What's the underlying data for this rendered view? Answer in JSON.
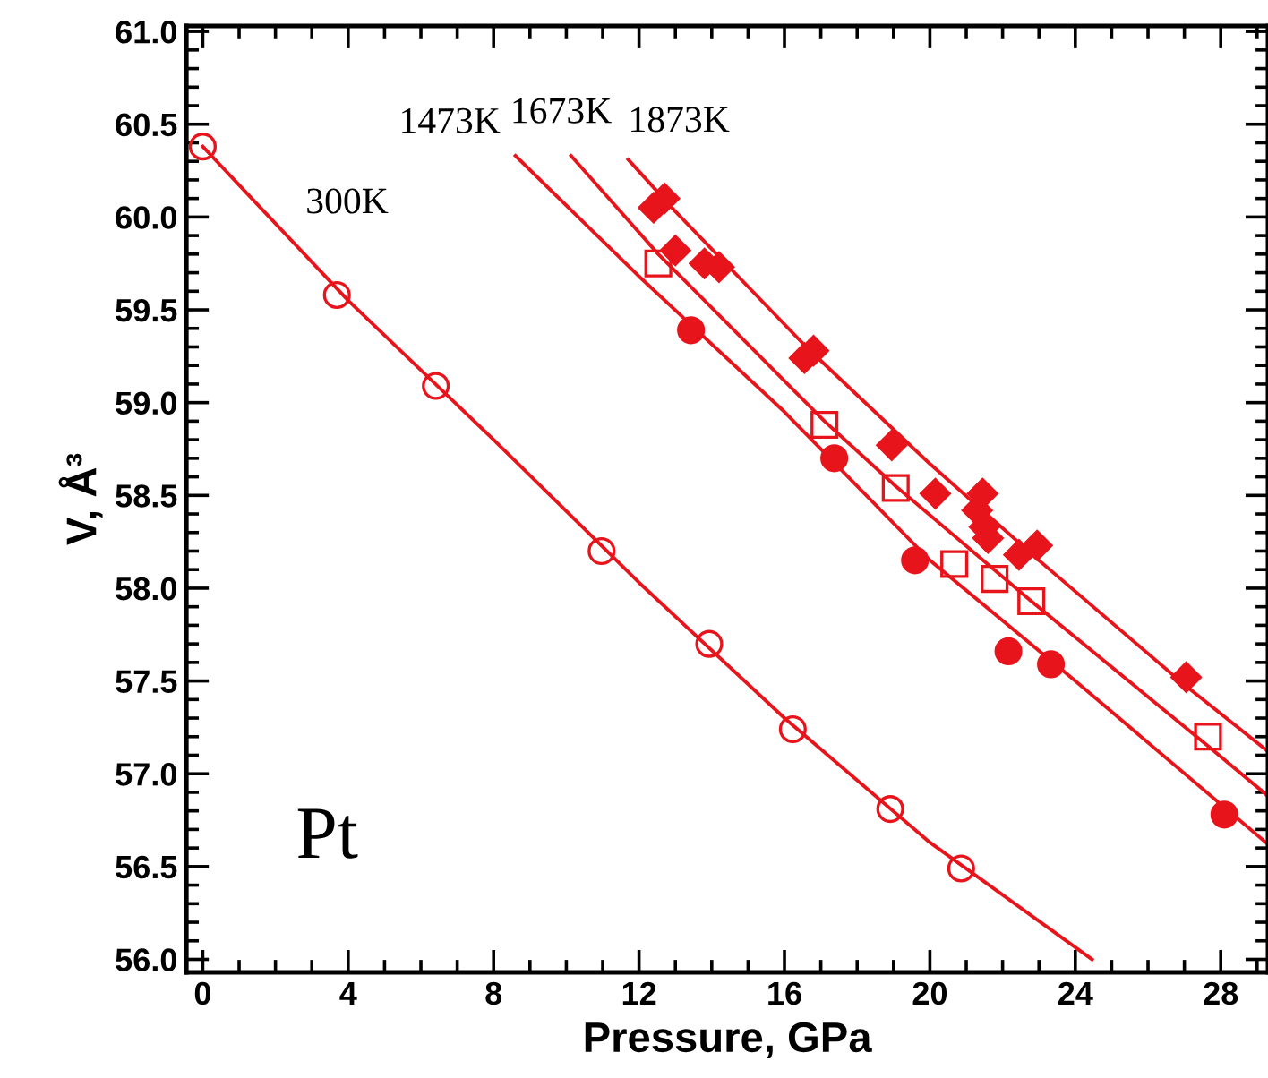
{
  "chart_data": {
    "type": "scatter",
    "xlabel": "Pressure, GPa",
    "ylabel": "V, Å³",
    "xlim": [
      -0.45,
      29.3
    ],
    "ylim": [
      55.93,
      61.03
    ],
    "xticks": [
      0,
      4,
      8,
      12,
      16,
      20,
      24,
      28
    ],
    "yticks": [
      {
        "value": 56.0,
        "label": "56.0"
      },
      56.5,
      {
        "value": 57.0,
        "label": "57.0"
      },
      57.5,
      {
        "value": 58.0,
        "label": "58.0"
      },
      58.5,
      {
        "value": 59.0,
        "label": "59.0"
      },
      59.5,
      {
        "value": 60.0,
        "label": "60.0"
      },
      60.5,
      {
        "value": 61.0,
        "label": "61.0"
      }
    ],
    "grid": false,
    "legend": false,
    "series": [
      {
        "color": "#e8141b",
        "marker": "circle",
        "x": [
          0,
          3.69,
          6.41,
          10.97,
          13.93,
          16.23,
          18.91,
          20.86
        ],
        "values": [
          60.38,
          59.58,
          59.09,
          58.2,
          57.7,
          57.24,
          56.81,
          56.49
        ]
      },
      {
        "type": "line",
        "name": "300K",
        "color": "#e8141b",
        "marker": "none",
        "x": [
          0,
          4,
          8,
          12,
          16,
          20,
          24.46
        ],
        "values": [
          60.38,
          59.55,
          58.8,
          58.03,
          57.3,
          56.63,
          56.0
        ]
      },
      {
        "color": "#e8141b",
        "marker": "circle",
        "x": [
          13.43,
          17.37,
          19.59,
          22.16,
          23.33,
          28.1
        ],
        "values": [
          59.39,
          58.7,
          58.15,
          57.66,
          57.59,
          56.78
        ]
      },
      {
        "type": "line",
        "name": "1473K",
        "color": "#e8141b",
        "marker": "none",
        "x": [
          8.6,
          12,
          16,
          20,
          24,
          29.3
        ],
        "values": [
          60.33,
          59.68,
          58.95,
          58.15,
          57.5,
          56.62
        ]
      },
      {
        "color": "#e8141b",
        "marker": "square",
        "x": [
          12.53,
          17.1,
          19.06,
          20.67,
          21.78,
          22.79,
          27.65
        ],
        "values": [
          59.75,
          58.88,
          58.54,
          58.13,
          58.05,
          57.93,
          57.2
        ]
      },
      {
        "type": "line",
        "name": "1673K",
        "color": "#e8141b",
        "marker": "none",
        "x": [
          10.13,
          12.53,
          17.1,
          19.06,
          22.79,
          27.65,
          29.3
        ],
        "values": [
          60.33,
          59.8,
          58.9,
          58.55,
          57.93,
          57.15,
          56.88
        ]
      },
      {
        "color": "#e8141b",
        "marker": "diamond",
        "x": [
          12.4,
          12.7,
          13.0,
          13.8,
          14.2,
          16.55,
          16.8,
          18.95,
          20.15,
          21.45,
          21.3,
          21.5,
          21.6,
          22.45,
          22.95,
          27.05
        ],
        "values": [
          60.05,
          60.1,
          59.82,
          59.75,
          59.73,
          59.24,
          59.28,
          58.77,
          58.51,
          58.51,
          58.42,
          58.33,
          58.27,
          58.18,
          58.23,
          57.52
        ]
      },
      {
        "type": "line",
        "name": "1873K",
        "color": "#e8141b",
        "marker": "none",
        "x": [
          11.7,
          13,
          16.6,
          20,
          23,
          27,
          29.3
        ],
        "values": [
          60.31,
          60.03,
          59.3,
          58.67,
          58.15,
          57.48,
          57.12
        ]
      }
    ],
    "annotations": [
      "Pt"
    ]
  }
}
